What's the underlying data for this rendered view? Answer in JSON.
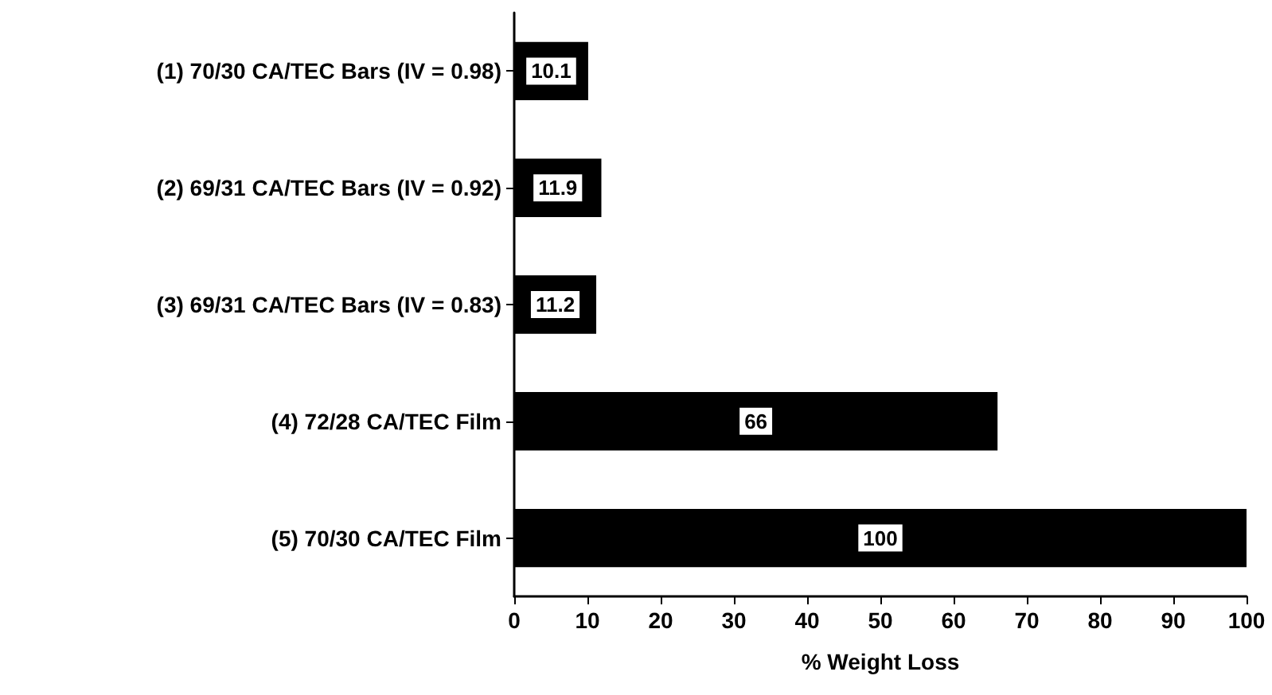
{
  "chart_data": {
    "type": "bar",
    "orientation": "horizontal",
    "xlabel": "% Weight Loss",
    "categories": [
      "(1) 70/30 CA/TEC Bars (IV = 0.98)",
      "(2) 69/31 CA/TEC Bars (IV = 0.92)",
      "(3) 69/31 CA/TEC Bars (IV = 0.83)",
      "(4) 72/28 CA/TEC Film",
      "(5) 70/30 CA/TEC Film"
    ],
    "values": [
      10.1,
      11.9,
      11.2,
      66,
      100
    ],
    "color": "#000000",
    "xlim": [
      0,
      100
    ],
    "xticks": [
      0,
      10,
      20,
      30,
      40,
      50,
      60,
      70,
      80,
      90,
      100
    ],
    "data_labels": true,
    "grid": false
  }
}
